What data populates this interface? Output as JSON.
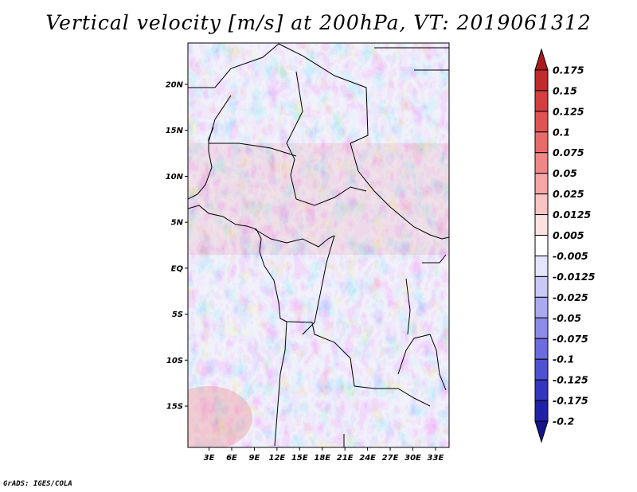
{
  "title": "Vertical velocity [m/s] at 200hPa, VT: 2019061312",
  "credit": "GrADS: IGES/COLA",
  "axes": {
    "lat_labels": [
      "20N",
      "15N",
      "10N",
      "5N",
      "EQ",
      "5S",
      "10S",
      "15S"
    ],
    "lat_values": [
      20,
      15,
      10,
      5,
      0,
      -5,
      -10,
      -15
    ],
    "lon_labels": [
      "3E",
      "6E",
      "9E",
      "12E",
      "15E",
      "18E",
      "21E",
      "24E",
      "27E",
      "30E",
      "33E"
    ],
    "lon_values": [
      3,
      6,
      9,
      12,
      15,
      18,
      21,
      24,
      27,
      30,
      33
    ],
    "lat_range": [
      -19.5,
      24.5
    ],
    "lon_range": [
      0.2,
      34.8
    ]
  },
  "colorbar": {
    "labels": [
      "0.175",
      "0.15",
      "0.125",
      "0.1",
      "0.075",
      "0.05",
      "0.025",
      "0.0125",
      "0.005",
      "-0.005",
      "-0.0125",
      "-0.025",
      "-0.05",
      "-0.075",
      "-0.1",
      "-0.125",
      "-0.175",
      "-0.2"
    ],
    "colors": [
      "#aa1a1a",
      "#c22b2b",
      "#d43e3e",
      "#e05353",
      "#e86b6b",
      "#ef8787",
      "#f5a5a5",
      "#f9c4c4",
      "#fce1e1",
      "#ffffff",
      "#e4e4fc",
      "#c9c9f7",
      "#aaaaf0",
      "#8c8ce8",
      "#6c6cde",
      "#5050d2",
      "#3535c0",
      "#2222a8",
      "#14148c"
    ]
  }
}
